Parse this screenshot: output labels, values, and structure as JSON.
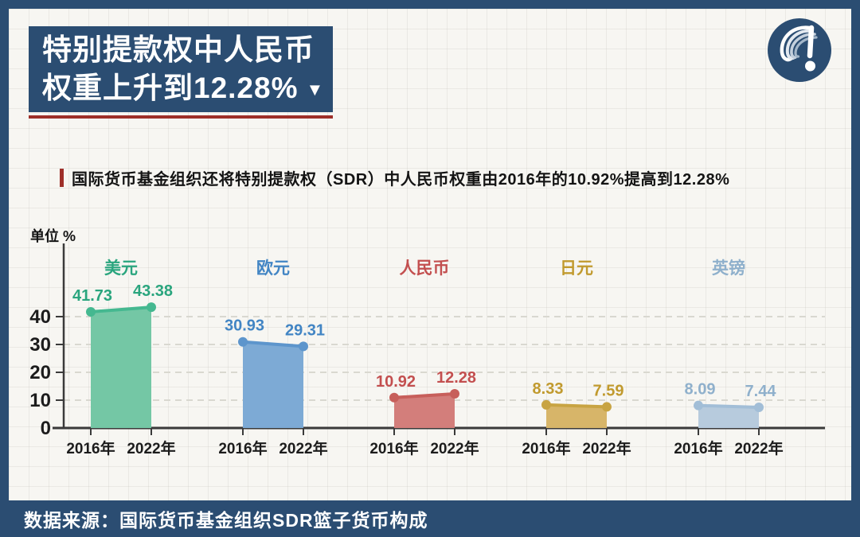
{
  "header": {
    "title_line1": "特别提款权中人民币",
    "title_line2": "权重上升到12.28%",
    "title_arrow": "▼"
  },
  "subtitle": {
    "text": "国际货币基金组织还将特别提款权（SDR）中人民币权重由2016年的10.92%提高到12.28%"
  },
  "footer": {
    "source": "数据来源：国际货币基金组织SDR篮子货币构成"
  },
  "logo": {
    "name": "media-logo-exclamation-swirl"
  },
  "colors": {
    "navy": "#2b4d72",
    "accent_red": "#9e2f29",
    "paper": "#f7f6f2",
    "axis_text": "#1c1c1c"
  },
  "chart_data": {
    "type": "area",
    "title": "特别提款权中人民币权重上升到12.28%",
    "unit_label": "单位 %",
    "x_categories": [
      "2016年",
      "2022年"
    ],
    "yticks": [
      0,
      10,
      20,
      30,
      40
    ],
    "ylim": [
      0,
      45
    ],
    "grid": "dashed horizontal gridlines at 10/20/30/40, legend above each group",
    "series": [
      {
        "name": "美元",
        "values": [
          41.73,
          43.38
        ],
        "color_text": "#2aa57e",
        "color_line": "#45b890",
        "color_fill": "#74c7a5"
      },
      {
        "name": "欧元",
        "values": [
          30.93,
          29.31
        ],
        "color_text": "#4285c4",
        "color_line": "#5d95cc",
        "color_fill": "#7daad5"
      },
      {
        "name": "人民币",
        "values": [
          10.92,
          12.28
        ],
        "color_text": "#c34f4f",
        "color_line": "#c75f5b",
        "color_fill": "#d37e7b"
      },
      {
        "name": "日元",
        "values": [
          8.33,
          7.59
        ],
        "color_text": "#c19a2e",
        "color_line": "#c8a443",
        "color_fill": "#d7b569"
      },
      {
        "name": "英镑",
        "values": [
          8.09,
          7.44
        ],
        "color_text": "#8fb0cc",
        "color_line": "#a2bed7",
        "color_fill": "#b7cbdd"
      }
    ]
  }
}
